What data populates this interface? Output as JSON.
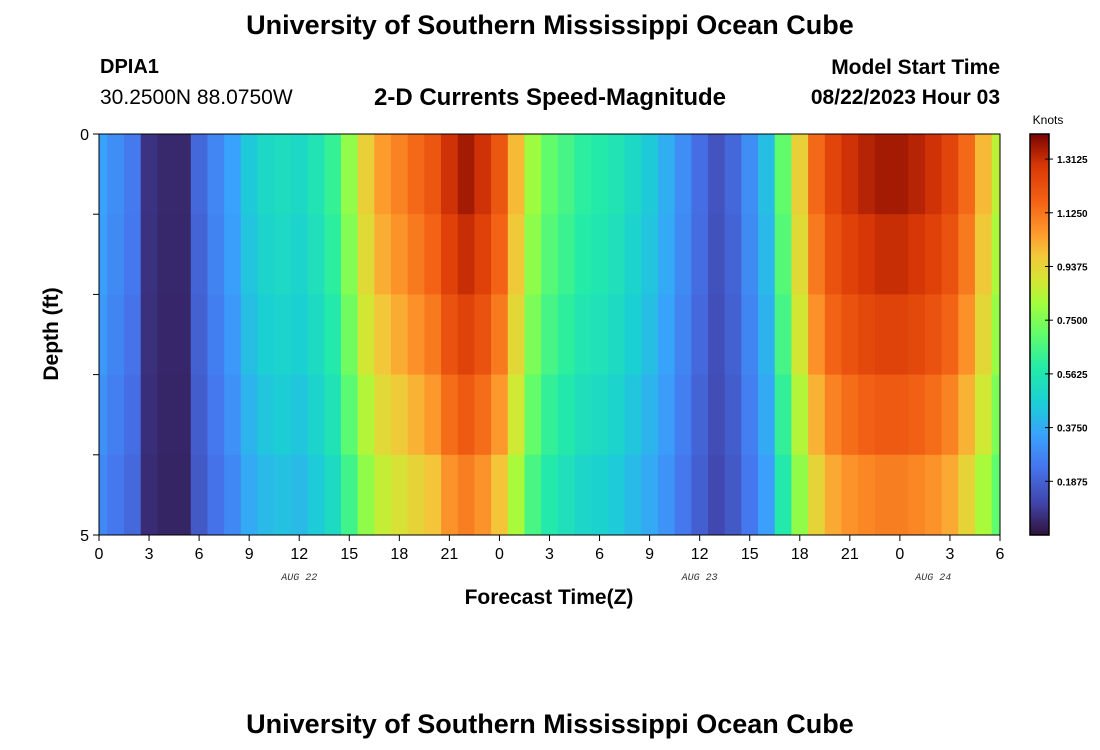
{
  "header": {
    "title": "University of Southern Mississippi Ocean Cube",
    "station": "DPIA1",
    "coordinates": "30.2500N  88.0750W",
    "subtitle": "2-D Currents Speed-Magnitude",
    "model_start_label": "Model Start Time",
    "model_start_value": "08/22/2023 Hour 03"
  },
  "footer": {
    "title": "University of Southern Mississippi Ocean Cube"
  },
  "chart_data": {
    "type": "heatmap",
    "title": "2-D Currents Speed-Magnitude",
    "xlabel": "Forecast Time(Z)",
    "ylabel": "Depth (ft)",
    "x_tick_labels": [
      "0",
      "3",
      "6",
      "9",
      "12",
      "15",
      "18",
      "21",
      "0",
      "3",
      "6",
      "9",
      "12",
      "15",
      "18",
      "21",
      "0",
      "3",
      "6"
    ],
    "date_labels": [
      {
        "label": "AUG 22",
        "hour_index": 12
      },
      {
        "label": "AUG 23",
        "hour_index": 36
      },
      {
        "label": "AUG 24",
        "hour_index": 50
      }
    ],
    "y_tick_labels": [
      "0",
      "5"
    ],
    "y_range": [
      0,
      5
    ],
    "hour_range": [
      0,
      54
    ],
    "depth_levels": 5,
    "colorbar": {
      "unit": "Knots",
      "min": 0,
      "max": 1.4,
      "tick_labels": [
        "0.1875",
        "0.3750",
        "0.5625",
        "0.7500",
        "0.9375",
        "1.1250",
        "1.3125"
      ],
      "tick_values": [
        0.1875,
        0.375,
        0.5625,
        0.75,
        0.9375,
        1.125,
        1.3125
      ]
    },
    "speed_profile_by_hour": [
      0.35,
      0.3,
      0.25,
      0.07,
      0.05,
      0.05,
      0.2,
      0.28,
      0.35,
      0.45,
      0.5,
      0.52,
      0.5,
      0.55,
      0.62,
      0.78,
      0.95,
      1.05,
      1.1,
      1.15,
      1.2,
      1.3,
      1.35,
      1.3,
      1.2,
      1.0,
      0.8,
      0.7,
      0.65,
      0.6,
      0.58,
      0.55,
      0.5,
      0.45,
      0.38,
      0.3,
      0.22,
      0.15,
      0.2,
      0.3,
      0.42,
      0.7,
      0.95,
      1.15,
      1.25,
      1.3,
      1.33,
      1.35,
      1.35,
      1.33,
      1.3,
      1.25,
      1.15,
      1.0,
      0.85
    ],
    "depth_factors": [
      1.0,
      0.97,
      0.93,
      0.88,
      0.82
    ]
  }
}
